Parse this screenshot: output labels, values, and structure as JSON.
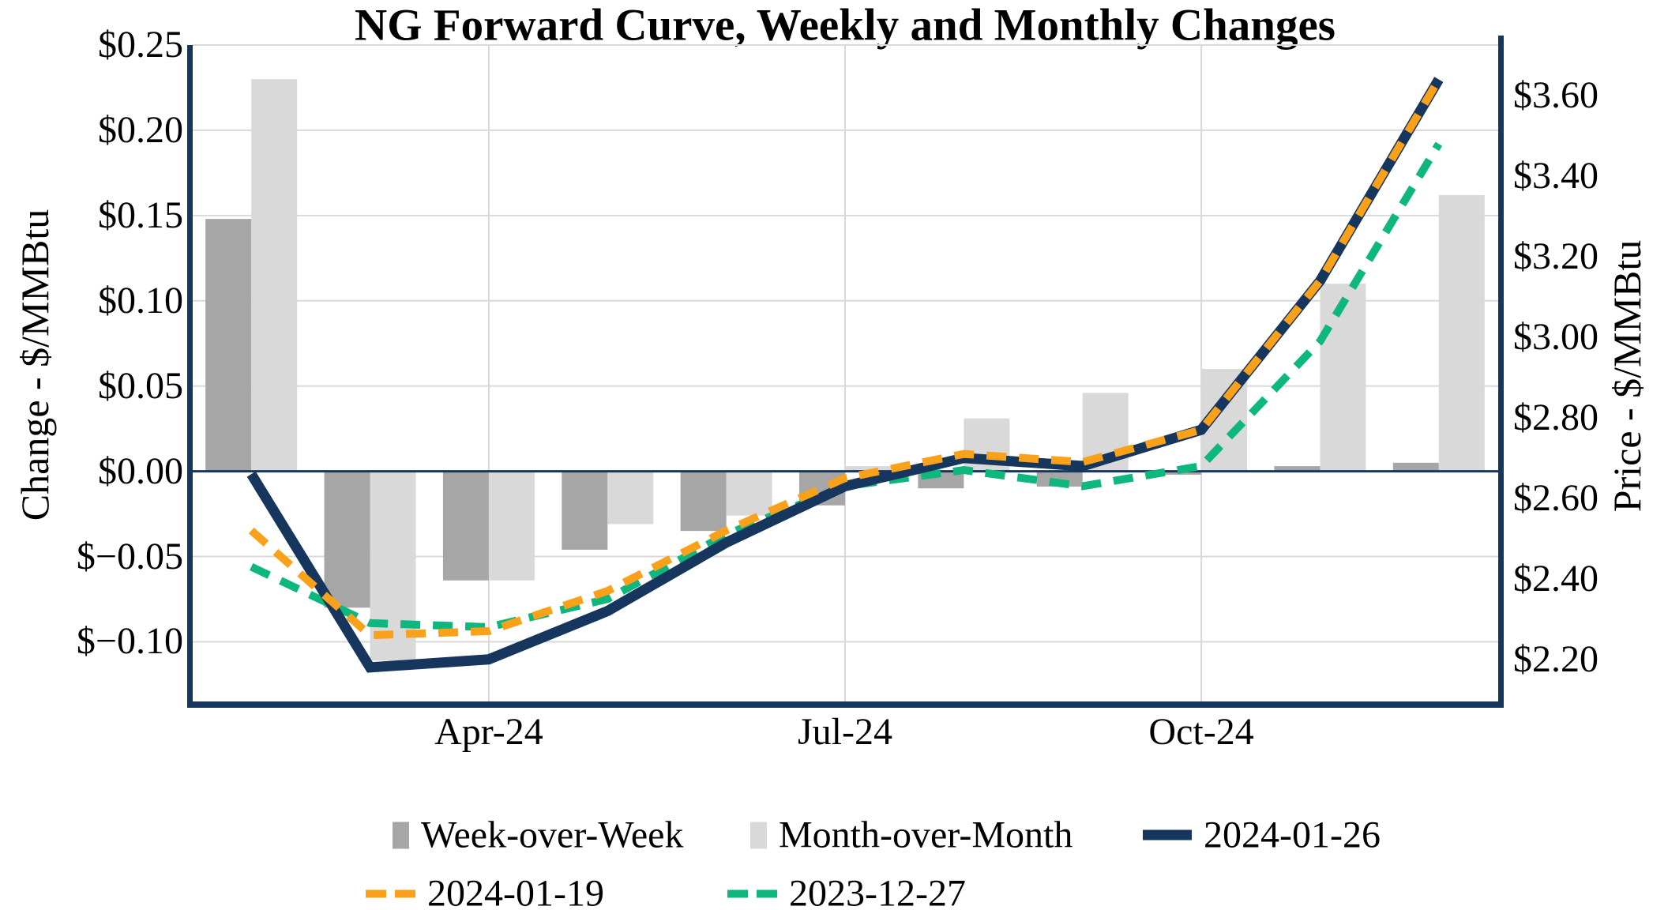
{
  "title": "NG Forward Curve, Weekly and Monthly Changes",
  "axes": {
    "left": {
      "title": "Change - $/MMBtu",
      "tick_labels": [
        "$0.25",
        "$0.20",
        "$0.15",
        "$0.10",
        "$0.05",
        "$0.00",
        "$−0.05",
        "$−0.10"
      ],
      "tick_values": [
        0.25,
        0.2,
        0.15,
        0.1,
        0.05,
        0.0,
        -0.05,
        -0.1
      ],
      "range": [
        -0.135,
        0.25
      ]
    },
    "right": {
      "title": "Price - $/MMBtu",
      "tick_labels": [
        "$3.60",
        "$3.40",
        "$3.20",
        "$3.00",
        "$2.80",
        "$2.60",
        "$2.40",
        "$2.20"
      ],
      "tick_values": [
        3.6,
        3.4,
        3.2,
        3.0,
        2.8,
        2.6,
        2.4,
        2.2
      ],
      "range": [
        2.0955,
        3.7255
      ]
    },
    "x": {
      "tick_labels": [
        "Apr-24",
        "Jul-24",
        "Oct-24"
      ],
      "tick_month_index": [
        2,
        5,
        8
      ]
    }
  },
  "colors": {
    "navy": "#17365d",
    "orange": "#f9a11b",
    "green": "#0db77e",
    "wow": "#a6a6a6",
    "mom": "#d9d9d9",
    "gridline": "#d9d9d9",
    "axis": "#17365d",
    "text": "#000000"
  },
  "legend": {
    "rows": [
      [
        {
          "label": "Week-over-Week",
          "marker": "bar",
          "color_key": "wow"
        },
        {
          "label": "Month-over-Month",
          "marker": "bar",
          "color_key": "mom"
        },
        {
          "label": "2024-01-26",
          "marker": "line-solid",
          "color_key": "navy"
        }
      ],
      [
        {
          "label": "2024-01-19",
          "marker": "line-dashed",
          "color_key": "orange"
        },
        {
          "label": "2023-12-27",
          "marker": "line-dashed",
          "color_key": "green"
        }
      ]
    ]
  },
  "chart_data": {
    "type": "combo",
    "title": "NG Forward Curve, Weekly and Monthly Changes",
    "categories": [
      "Feb-24",
      "Mar-24",
      "Apr-24",
      "May-24",
      "Jun-24",
      "Jul-24",
      "Aug-24",
      "Sep-24",
      "Oct-24",
      "Nov-24",
      "Dec-24"
    ],
    "x_ticks_shown": [
      "Apr-24",
      "Jul-24",
      "Oct-24"
    ],
    "ylabel_left": "Change - $/MMBtu",
    "ylabel_right": "Price - $/MMBtu",
    "ylim_left": [
      -0.135,
      0.25
    ],
    "ylim_right": [
      2.0955,
      3.7255
    ],
    "grid": true,
    "legend_position": "bottom",
    "bar_series": [
      {
        "name": "Week-over-Week",
        "type": "bar",
        "axis": "left",
        "color_key": "wow",
        "values": [
          0.148,
          -0.08,
          -0.064,
          -0.046,
          -0.035,
          -0.02,
          -0.01,
          -0.009,
          -0.002,
          0.003,
          0.005
        ]
      },
      {
        "name": "Month-over-Month",
        "type": "bar",
        "axis": "left",
        "color_key": "mom",
        "values": [
          0.23,
          -0.111,
          -0.064,
          -0.031,
          -0.026,
          0.003,
          0.031,
          0.046,
          0.06,
          0.11,
          0.162
        ]
      }
    ],
    "line_series": [
      {
        "name": "2023-12-27",
        "type": "line",
        "axis": "right",
        "style": "dashed",
        "color_key": "green",
        "values": [
          2.43,
          2.29,
          2.28,
          2.35,
          2.51,
          2.63,
          2.67,
          2.63,
          2.68,
          2.99,
          3.48
        ]
      },
      {
        "name": "2024-01-26",
        "type": "line",
        "axis": "right",
        "style": "solid",
        "color_key": "navy",
        "values": [
          2.66,
          2.18,
          2.2,
          2.32,
          2.49,
          2.63,
          2.7,
          2.68,
          2.77,
          3.14,
          3.64
        ]
      },
      {
        "name": "2024-01-19",
        "type": "line",
        "axis": "right",
        "style": "dashed",
        "color_key": "orange",
        "values": [
          2.52,
          2.26,
          2.27,
          2.37,
          2.52,
          2.65,
          2.71,
          2.69,
          2.77,
          3.14,
          3.64
        ]
      }
    ]
  }
}
